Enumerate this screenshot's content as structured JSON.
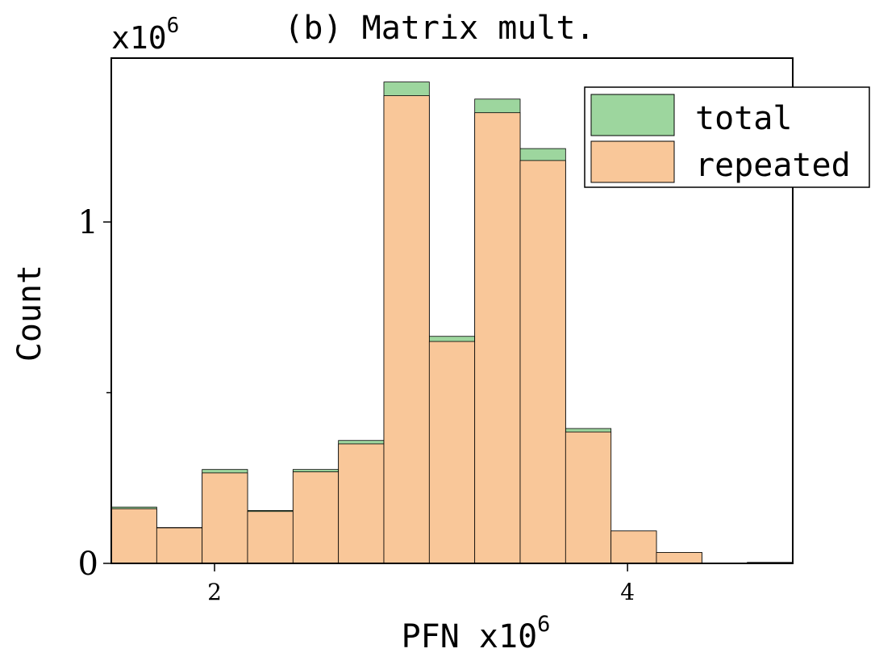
{
  "chart_data": {
    "type": "bar",
    "stacked": "overlay",
    "title": "(b) Matrix mult.",
    "xlabel": "PFN",
    "x_multiplier": "x10",
    "x_multiplier_exp": "6",
    "ylabel": "Count",
    "y_multiplier": "x10",
    "y_multiplier_exp": "6",
    "bin_edges": [
      1.5,
      1.72,
      1.94,
      2.16,
      2.38,
      2.6,
      2.82,
      3.04,
      3.26,
      3.48,
      3.7,
      3.92,
      4.14,
      4.36,
      4.58,
      4.8
    ],
    "xlim": [
      1.5,
      4.8
    ],
    "ylim": [
      0,
      1.48
    ],
    "xticks": [
      {
        "value": 2,
        "label": "2"
      },
      {
        "value": 4,
        "label": "4"
      }
    ],
    "yticks": [
      {
        "value": 0,
        "label": "0"
      },
      {
        "value": 1,
        "label": "1"
      }
    ],
    "y_minor_ticks": [
      0.5
    ],
    "series": [
      {
        "name": "total",
        "color": "#9dd69e",
        "values": [
          0.165,
          0.105,
          0.275,
          0.155,
          0.275,
          0.36,
          1.41,
          0.665,
          1.36,
          1.215,
          0.395,
          0.095,
          0.032,
          0.0,
          0.003
        ]
      },
      {
        "name": "repeated",
        "color": "#f9c799",
        "values": [
          0.16,
          0.104,
          0.265,
          0.152,
          0.268,
          0.35,
          1.37,
          0.65,
          1.32,
          1.18,
          0.385,
          0.095,
          0.032,
          0.0,
          0.002
        ]
      }
    ],
    "legend": {
      "position": "top-right"
    },
    "grid": false
  }
}
